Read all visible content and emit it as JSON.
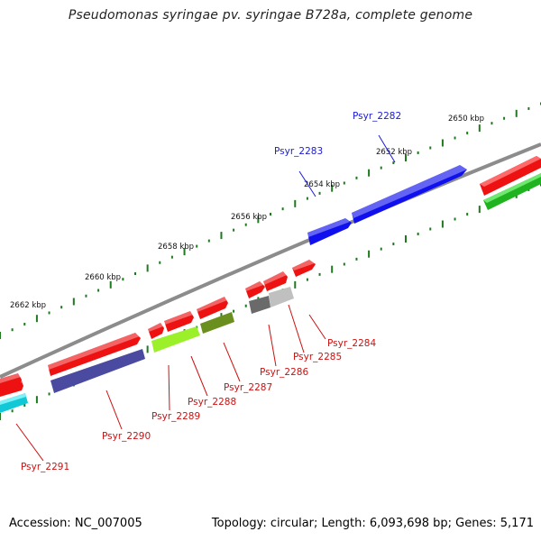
{
  "title": "Pseudomonas syringae pv. syringae B728a, complete genome",
  "accession": "Accession: NC_007005",
  "topology": "Topology: circular; Length: 6,093,698 bp; Genes: 5,171",
  "colors": {
    "backbone": "#8c8c8c",
    "tick": "#1f7a1f",
    "label_forward": "#1a1ad6",
    "label_reverse": "#cc1111"
  },
  "ruler": [
    {
      "label": "2650 kbp"
    },
    {
      "label": "2652 kbp"
    },
    {
      "label": "2654 kbp"
    },
    {
      "label": "2656 kbp"
    },
    {
      "label": "2658 kbp"
    },
    {
      "label": "2660 kbp"
    },
    {
      "label": "2662 kbp"
    }
  ],
  "genes": [
    {
      "label": "Psyr_2282",
      "strand": "forward",
      "color": "#1010ee"
    },
    {
      "label": "Psyr_2283",
      "strand": "forward",
      "color": "#1010ee"
    },
    {
      "label": "Psyr_2284",
      "strand": "reverse",
      "color": "#ee1111"
    },
    {
      "label": "Psyr_2285",
      "strand": "reverse",
      "color": "#ee1111"
    },
    {
      "label": "Psyr_2286",
      "strand": "reverse",
      "color": "#ee1111"
    },
    {
      "label": "Psyr_2287",
      "strand": "reverse",
      "color": "#ee1111"
    },
    {
      "label": "Psyr_2288",
      "strand": "reverse",
      "color": "#ee1111"
    },
    {
      "label": "Psyr_2289",
      "strand": "reverse",
      "color": "#ee1111"
    },
    {
      "label": "Psyr_2290",
      "strand": "reverse",
      "color": "#ee1111"
    },
    {
      "label": "Psyr_2291",
      "strand": "reverse",
      "color": "#ee1111"
    }
  ]
}
